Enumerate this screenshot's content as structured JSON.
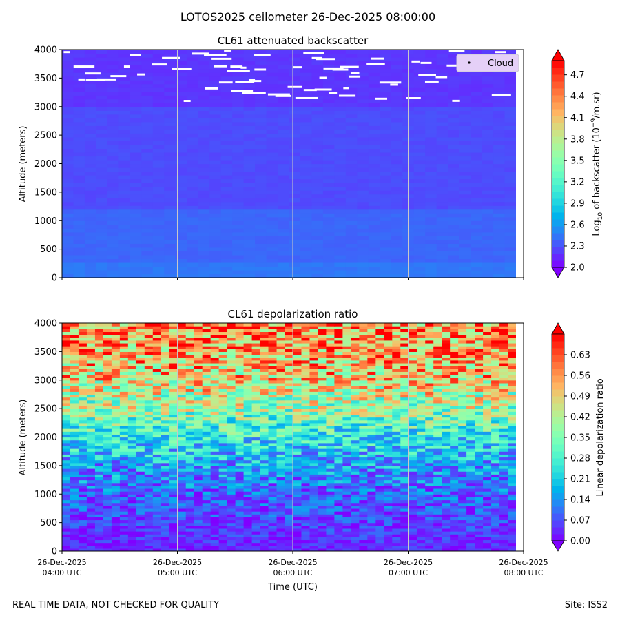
{
  "figure": {
    "suptitle": "LOTOS2025 ceilometer 26-Dec-2025 08:00:00",
    "footer_left": "REAL TIME DATA, NOT CHECKED FOR QUALITY",
    "footer_right": "Site: ISS2"
  },
  "chart_data": [
    {
      "type": "heatmap",
      "title": "CL61 attenuated backscatter",
      "ylabel": "Altitude (meters)",
      "xlabel": "",
      "xlim": [
        "26-Dec-2025 04:00 UTC",
        "26-Dec-2025 08:00 UTC"
      ],
      "ylim": [
        0,
        4000
      ],
      "yticks": [
        0,
        500,
        1000,
        1500,
        2000,
        2500,
        3000,
        3500,
        4000
      ],
      "vertical_gridlines_at_hours": true,
      "colormap": "rainbow",
      "colorbar": {
        "label_prefix": "Log",
        "label_sub": "10",
        "label_rest": " of backscatter (10",
        "label_exp": "−9",
        "label_tail": "/m.sr)",
        "range": [
          2.0,
          4.9
        ],
        "ticks": [
          "2.0",
          "2.3",
          "2.6",
          "2.9",
          "3.2",
          "3.5",
          "3.8",
          "4.1",
          "4.4",
          "4.7"
        ],
        "extend": "both"
      },
      "legend": {
        "label": "Cloud",
        "location": "upper right"
      },
      "fields": {
        "surface_0_300m": 2.45,
        "low_300_1200m": 2.38,
        "mid_1200_3000m": 2.28,
        "upper_3000_4000m": 2.2
      },
      "cloud_markers": "white dashes between about 2950 m and 4000 m"
    },
    {
      "type": "heatmap",
      "title": "CL61 depolarization ratio",
      "ylabel": "Altitude (meters)",
      "xlabel": "Time (UTC)",
      "xlim": [
        "26-Dec-2025 04:00 UTC",
        "26-Dec-2025 08:00 UTC"
      ],
      "ylim": [
        0,
        4000
      ],
      "yticks": [
        0,
        500,
        1000,
        1500,
        2000,
        2500,
        3000,
        3500,
        4000
      ],
      "xticks": [
        {
          "date": "26-Dec-2025",
          "time": "04:00 UTC"
        },
        {
          "date": "26-Dec-2025",
          "time": "05:00 UTC"
        },
        {
          "date": "26-Dec-2025",
          "time": "06:00 UTC"
        },
        {
          "date": "26-Dec-2025",
          "time": "07:00 UTC"
        },
        {
          "date": "26-Dec-2025",
          "time": "08:00 UTC"
        }
      ],
      "vertical_gridlines_at_hours": true,
      "colormap": "rainbow",
      "colorbar": {
        "label": "Linear depolarization ratio",
        "range": [
          0.0,
          0.7
        ],
        "ticks": [
          "0.00",
          "0.07",
          "0.14",
          "0.21",
          "0.28",
          "0.35",
          "0.42",
          "0.49",
          "0.56",
          "0.63"
        ],
        "extend": "both"
      },
      "profile": [
        {
          "altitude": 0,
          "ratio": 0.03
        },
        {
          "altitude": 500,
          "ratio": 0.06
        },
        {
          "altitude": 1000,
          "ratio": 0.09
        },
        {
          "altitude": 1500,
          "ratio": 0.15
        },
        {
          "altitude": 2000,
          "ratio": 0.25
        },
        {
          "altitude": 2500,
          "ratio": 0.38
        },
        {
          "altitude": 3000,
          "ratio": 0.48
        },
        {
          "altitude": 3500,
          "ratio": 0.55
        },
        {
          "altitude": 4000,
          "ratio": 0.58
        }
      ]
    }
  ]
}
